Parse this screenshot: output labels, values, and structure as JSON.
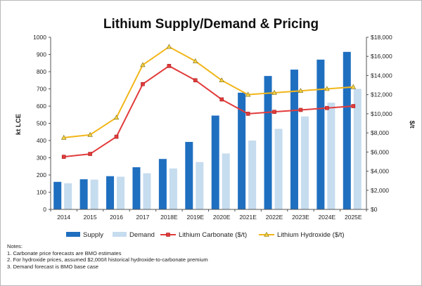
{
  "chart_data": {
    "type": "bar",
    "title": "Lithium Supply/Demand & Pricing",
    "categories": [
      "2014",
      "2015",
      "2016",
      "2017",
      "2018E",
      "2019E",
      "2020E",
      "2021E",
      "2022E",
      "2023E",
      "2024E",
      "2025E"
    ],
    "series": [
      {
        "name": "Supply",
        "type": "bar",
        "axis": "left",
        "color": "#1f6fc0",
        "values": [
          160,
          175,
          193,
          245,
          293,
          392,
          545,
          678,
          775,
          812,
          870,
          915
        ]
      },
      {
        "name": "Demand",
        "type": "bar",
        "axis": "left",
        "color": "#c6dcef",
        "values": [
          152,
          173,
          190,
          210,
          238,
          275,
          325,
          400,
          468,
          540,
          620,
          700
        ]
      },
      {
        "name": "Lithium Carbonate ($/t)",
        "type": "line",
        "axis": "right",
        "color": "#e23b3b",
        "marker": "square",
        "values": [
          5500,
          5800,
          7600,
          13100,
          15000,
          13500,
          11500,
          10000,
          10200,
          10400,
          10600,
          10800
        ]
      },
      {
        "name": "Lithium Hydroxide ($/t)",
        "type": "line",
        "axis": "right",
        "color": "#f2b61a",
        "marker": "triangle",
        "values": [
          7500,
          7800,
          9600,
          15100,
          17000,
          15500,
          13500,
          12000,
          12200,
          12400,
          12600,
          12800
        ]
      }
    ],
    "ylabel": "kt LCE",
    "ylabel_right": "$/t",
    "ylim": [
      0,
      1000
    ],
    "ylim_right": [
      0,
      18000
    ],
    "yticks": [
      "0",
      "100",
      "200",
      "300",
      "400",
      "500",
      "600",
      "700",
      "800",
      "900",
      "1000"
    ],
    "yticks_right": [
      "$0",
      "$2,000",
      "$4,000",
      "$6,000",
      "$8,000",
      "$10,000",
      "$12,000",
      "$14,000",
      "$16,000",
      "$18,000"
    ],
    "grid": false,
    "legend_position": "bottom",
    "legend": [
      "Supply",
      "Demand",
      "Lithium Carbonate ($/t)",
      "Lithium Hydroxide ($/t)"
    ]
  },
  "notes": {
    "heading": "Notes:",
    "lines": [
      "1. Carbonate price forecasts are BMO estimates",
      "2. For hydroxide prices, assumed $2,000/t historical hydroxide-to-carbonate premium",
      "3. Demand forecast is BMO base case"
    ]
  }
}
